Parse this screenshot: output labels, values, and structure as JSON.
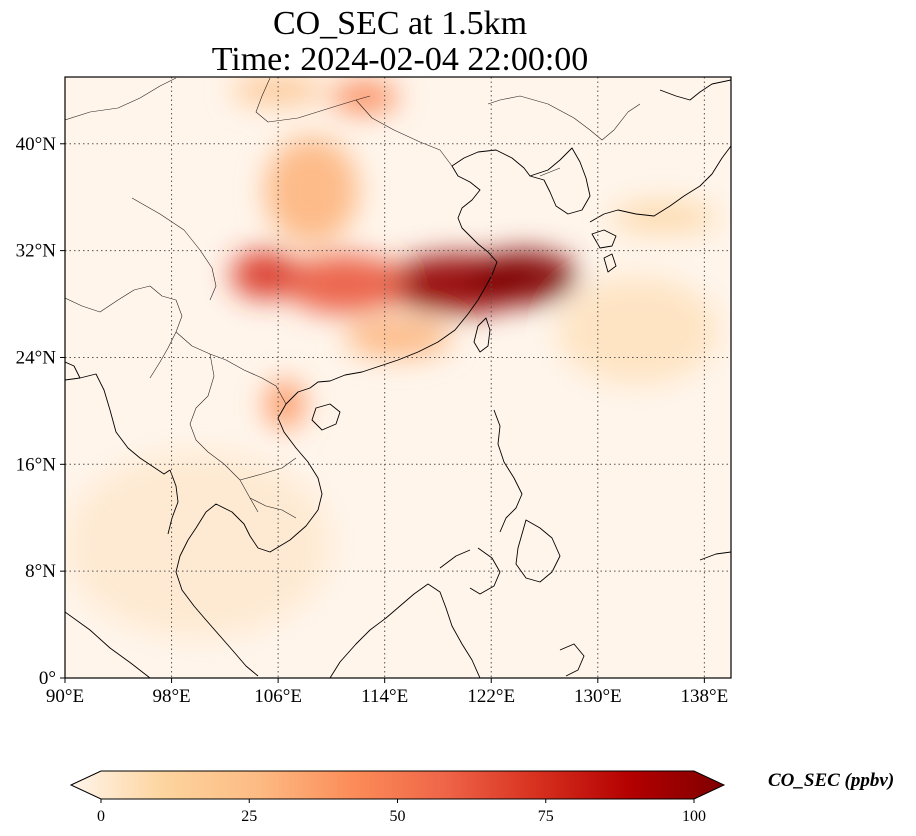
{
  "title": {
    "line1": "CO_SEC at 1.5km",
    "line2": "Time: 2024-02-04 22:00:00"
  },
  "map": {
    "lon_range": [
      90,
      140
    ],
    "lat_range": [
      0,
      45
    ],
    "lon_ticks": [
      90,
      98,
      106,
      114,
      122,
      130,
      138
    ],
    "lon_tick_labels": [
      "90°E",
      "98°E",
      "106°E",
      "114°E",
      "122°E",
      "130°E",
      "138°E"
    ],
    "lat_ticks": [
      0,
      8,
      16,
      24,
      32,
      40
    ],
    "lat_tick_labels": [
      "0°",
      "8°N",
      "16°N",
      "24°N",
      "32°N",
      "40°N"
    ],
    "gridlines": "dotted",
    "colormap": "OrRd",
    "background_color": "#fff5eb",
    "plumes": [
      {
        "lon": 119.5,
        "lat": 29.5,
        "rlon": 5.5,
        "rlat": 2.2,
        "value": 95
      },
      {
        "lon": 124.5,
        "lat": 30.0,
        "rlon": 4.0,
        "rlat": 2.0,
        "value": 100
      },
      {
        "lon": 111.0,
        "lat": 29.5,
        "rlon": 4.5,
        "rlat": 2.2,
        "value": 60
      },
      {
        "lon": 105.0,
        "lat": 30.2,
        "rlon": 2.5,
        "rlat": 1.8,
        "value": 70
      },
      {
        "lon": 108.5,
        "lat": 36.5,
        "rlon": 3.5,
        "rlat": 4.0,
        "value": 30
      },
      {
        "lon": 112.5,
        "lat": 43.5,
        "rlon": 2.5,
        "rlat": 1.2,
        "value": 45
      },
      {
        "lon": 106.0,
        "lat": 44.0,
        "rlon": 3.5,
        "rlat": 1.0,
        "value": 25
      },
      {
        "lon": 115.0,
        "lat": 25.5,
        "rlon": 4.0,
        "rlat": 1.5,
        "value": 30
      },
      {
        "lon": 106.5,
        "lat": 20.5,
        "rlon": 1.5,
        "rlat": 1.8,
        "value": 40
      },
      {
        "lon": 133.0,
        "lat": 26.0,
        "rlon": 6.0,
        "rlat": 4.0,
        "value": 8
      },
      {
        "lon": 135.0,
        "lat": 34.5,
        "rlon": 4.0,
        "rlat": 1.2,
        "value": 12
      },
      {
        "lon": 100.0,
        "lat": 10.0,
        "rlon": 10.0,
        "rlat": 7.0,
        "value": 5
      }
    ]
  },
  "colorbar": {
    "label": "CO_SEC (ppbv)",
    "min": 0,
    "max": 100,
    "ticks": [
      0,
      25,
      50,
      75,
      100
    ],
    "tick_labels": [
      "0",
      "25",
      "50",
      "75",
      "100"
    ],
    "extend": "both",
    "stops": [
      "#fff5eb",
      "#fdd49e",
      "#fdbb84",
      "#fc8d59",
      "#ef6548",
      "#d7301f",
      "#b30000",
      "#7f0000"
    ]
  }
}
